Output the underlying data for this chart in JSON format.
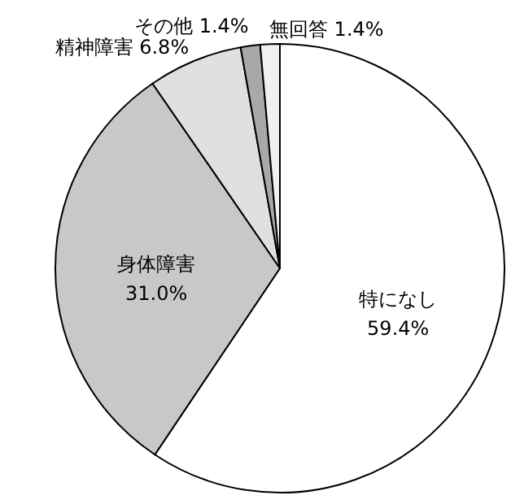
{
  "chart_data": {
    "type": "pie",
    "categories": [
      "特になし",
      "身体障害",
      "精神障害",
      "その他",
      "無回答"
    ],
    "values": [
      59.4,
      31.0,
      6.8,
      1.4,
      1.4
    ],
    "value_labels": [
      "59.4%",
      "31.0%",
      "6.8%",
      "1.4%",
      "1.4%"
    ],
    "colors": [
      "#ffffff",
      "#c8c8c8",
      "#e0e0e0",
      "#a8a8a8",
      "#f0f0f0"
    ]
  }
}
